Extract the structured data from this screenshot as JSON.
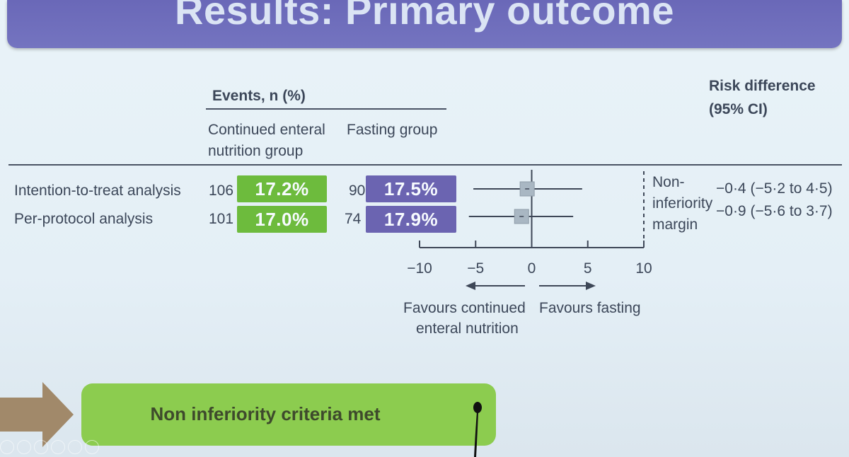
{
  "slide": {
    "title": "Results: Primary outcome",
    "events_header": "Events, n (%)",
    "col_enteral_line1": "Continued enteral",
    "col_enteral_line2": "nutrition group",
    "col_fasting": "Fasting group",
    "risk_header_line1": "Risk difference",
    "risk_header_line2": "(95% CI)",
    "ni_line1": "Non-",
    "ni_line2": "inferiority",
    "ni_line3": "margin",
    "favours_left_line1": "Favours continued",
    "favours_left_line2": "enteral nutrition",
    "favours_right": "Favours fasting",
    "conclusion": "Non inferiority criteria met"
  },
  "rows": [
    {
      "label": "Intention-to-treat analysis",
      "enteral_n": "106",
      "enteral_pct": "17.2%",
      "fasting_n": "90",
      "fasting_pct": "17.5%",
      "rd_text": "−0·4 (−5·2 to 4·5)"
    },
    {
      "label": "Per-protocol analysis",
      "enteral_n": "101",
      "enteral_pct": "17.0%",
      "fasting_n": "74",
      "fasting_pct": "17.9%",
      "rd_text": "−0·9 (−5·6 to 3·7)"
    }
  ],
  "chart_data": {
    "type": "forest",
    "categories": [
      "Intention-to-treat analysis",
      "Per-protocol analysis"
    ],
    "estimates": [
      -0.4,
      -0.9
    ],
    "ci_lower": [
      -5.2,
      -5.6
    ],
    "ci_upper": [
      4.5,
      3.7
    ],
    "xlim": [
      -10,
      10
    ],
    "xticks": [
      -10,
      -5,
      0,
      5,
      10
    ],
    "xtick_labels": [
      "−10",
      "−5",
      "0",
      "5",
      "10"
    ],
    "reference_line": 0,
    "non_inferiority_margin": 10
  },
  "colors": {
    "enteral_green": "#6dbb3d",
    "fasting_purple": "#6b64b1",
    "title_purple": "#6a68b8",
    "conclusion_green": "#8ccc4f"
  }
}
